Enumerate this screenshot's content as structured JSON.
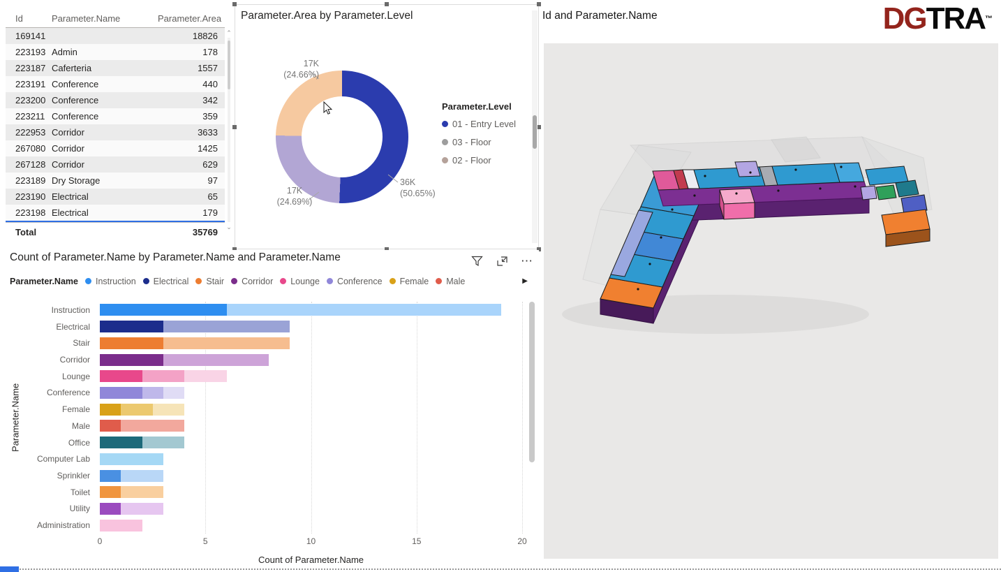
{
  "table": {
    "columns": [
      "Id",
      "Parameter.Name",
      "Parameter.Area"
    ],
    "rows": [
      [
        "169141",
        "",
        "18826"
      ],
      [
        "223193",
        "Admin",
        "178"
      ],
      [
        "223187",
        "Caferteria",
        "1557"
      ],
      [
        "223191",
        "Conference",
        "440"
      ],
      [
        "223200",
        "Conference",
        "342"
      ],
      [
        "223211",
        "Conference",
        "359"
      ],
      [
        "222953",
        "Corridor",
        "3633"
      ],
      [
        "267080",
        "Corridor",
        "1425"
      ],
      [
        "267128",
        "Corridor",
        "629"
      ],
      [
        "223189",
        "Dry Storage",
        "97"
      ],
      [
        "223190",
        "Electrical",
        "65"
      ],
      [
        "223198",
        "Electrical",
        "179"
      ]
    ],
    "total_label": "Total",
    "total_value": "35769",
    "scroll_up": "⌃",
    "scroll_down": "⌄"
  },
  "right_panel": {
    "title": "Id and Parameter.Name"
  },
  "logo": {
    "part1": "DG",
    "part2": "TRA",
    "tm": "™",
    "part1_color": "#93241c",
    "part2_color": "#0a0a0a"
  },
  "icons": {
    "filter": "funnel-icon",
    "focus_mode": "focus-mode-icon",
    "more_options": "⋯",
    "legend_more_arrow": "▶"
  },
  "accents": {
    "table_focus_line": "#2f6fe4",
    "bottom_chip": "#2f6fe4"
  },
  "chart_data": [
    {
      "type": "pie",
      "subtype": "donut",
      "title": "Parameter.Area by Parameter.Level",
      "legend_title": "Parameter.Level",
      "legend_position": "right",
      "slices": [
        {
          "label": "01 - Entry Level",
          "value": "36K",
          "percent": 50.65,
          "pct_label": "(50.65%)",
          "color": "#2b3cae"
        },
        {
          "label": "03 - Floor",
          "value": "17K",
          "percent": 24.69,
          "pct_label": "(24.69%)",
          "color": "#b2a6d4"
        },
        {
          "label": "02 - Floor",
          "value": "17K",
          "percent": 24.66,
          "pct_label": "(24.66%)",
          "color": "#f6c9a0"
        }
      ],
      "legend": [
        {
          "label": "01 - Entry Level",
          "color": "#2b3cae"
        },
        {
          "label": "03 - Floor",
          "color": "#9d9d9d"
        },
        {
          "label": "02 - Floor",
          "color": "#b5a29a"
        }
      ]
    },
    {
      "type": "bar",
      "orientation": "horizontal",
      "stacked": true,
      "title": "Count of Parameter.Name by Parameter.Name and Parameter.Name",
      "xlabel": "Count of Parameter.Name",
      "ylabel": "Parameter.Name",
      "xlim": [
        0,
        20
      ],
      "xticks": [
        0,
        5,
        10,
        15,
        20
      ],
      "grid": "vertical-dotted",
      "legend_title": "Parameter.Name",
      "legend": [
        {
          "label": "Instruction",
          "color": "#2e8ef0"
        },
        {
          "label": "Electrical",
          "color": "#1c2d8c"
        },
        {
          "label": "Stair",
          "color": "#ed7d31"
        },
        {
          "label": "Corridor",
          "color": "#7b2d8b"
        },
        {
          "label": "Lounge",
          "color": "#e8488b"
        },
        {
          "label": "Conference",
          "color": "#9087d9"
        },
        {
          "label": "Female",
          "color": "#d9a118"
        },
        {
          "label": "Male",
          "color": "#e05c4b"
        }
      ],
      "bars": [
        {
          "category": "Instruction",
          "segments": [
            {
              "value": 6,
              "color": "#2e8ef0"
            },
            {
              "value": 13,
              "color": "#a9d4fb"
            }
          ]
        },
        {
          "category": "Electrical",
          "segments": [
            {
              "value": 3,
              "color": "#1c2d8c"
            },
            {
              "value": 6,
              "color": "#9aa3d6"
            }
          ]
        },
        {
          "category": "Stair",
          "segments": [
            {
              "value": 3,
              "color": "#ed7d31"
            },
            {
              "value": 6,
              "color": "#f6bd8f"
            }
          ]
        },
        {
          "category": "Corridor",
          "segments": [
            {
              "value": 3,
              "color": "#7b2d8b"
            },
            {
              "value": 5,
              "color": "#cda3d8"
            }
          ]
        },
        {
          "category": "Lounge",
          "segments": [
            {
              "value": 2,
              "color": "#e8488b"
            },
            {
              "value": 2,
              "color": "#f3a2c6"
            },
            {
              "value": 2,
              "color": "#f9d4e6"
            }
          ]
        },
        {
          "category": "Conference",
          "segments": [
            {
              "value": 2,
              "color": "#9087d9"
            },
            {
              "value": 1,
              "color": "#bfb8ea"
            },
            {
              "value": 1,
              "color": "#e0dcf5"
            }
          ]
        },
        {
          "category": "Female",
          "segments": [
            {
              "value": 1,
              "color": "#d9a118"
            },
            {
              "value": 1.5,
              "color": "#ecc96f"
            },
            {
              "value": 1.5,
              "color": "#f6e4b8"
            }
          ]
        },
        {
          "category": "Male",
          "segments": [
            {
              "value": 1,
              "color": "#e05c4b"
            },
            {
              "value": 3,
              "color": "#f2a89d"
            }
          ]
        },
        {
          "category": "Office",
          "segments": [
            {
              "value": 2,
              "color": "#1d6a7a"
            },
            {
              "value": 2,
              "color": "#a3c8d1"
            }
          ]
        },
        {
          "category": "Computer Lab",
          "segments": [
            {
              "value": 3,
              "color": "#a5d8f5"
            }
          ]
        },
        {
          "category": "Sprinkler",
          "segments": [
            {
              "value": 1,
              "color": "#4a90e2"
            },
            {
              "value": 2,
              "color": "#b9d7f7"
            }
          ]
        },
        {
          "category": "Toilet",
          "segments": [
            {
              "value": 1,
              "color": "#f0953f"
            },
            {
              "value": 2,
              "color": "#f9cf9f"
            }
          ]
        },
        {
          "category": "Utility",
          "segments": [
            {
              "value": 1,
              "color": "#9b4bbf"
            },
            {
              "value": 2,
              "color": "#e6c6f0"
            }
          ]
        },
        {
          "category": "Administration",
          "segments": [
            {
              "value": 2,
              "color": "#f9c3de"
            }
          ]
        }
      ]
    }
  ]
}
